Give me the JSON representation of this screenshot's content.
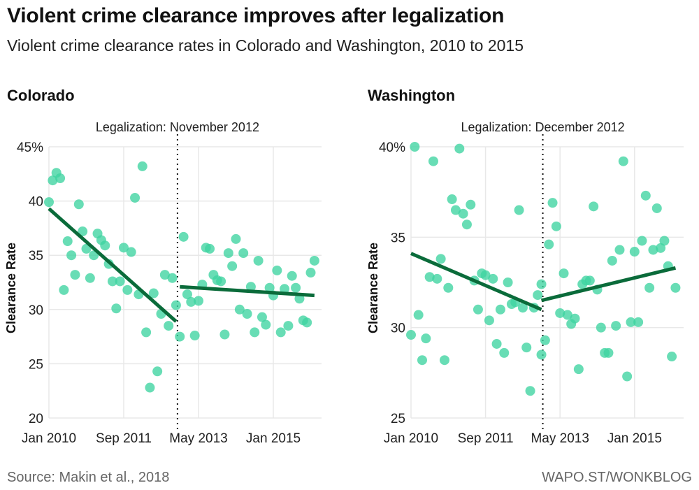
{
  "header": {
    "title": "Violent crime clearance improves after legalization",
    "subtitle": "Violent crime clearance rates in Colorado and Washington, 2010 to 2015"
  },
  "footer": {
    "source": "Source: Makin et al., 2018",
    "credit": "WAPO.ST/WONKBLOG"
  },
  "colors": {
    "points": "#3dd3a0",
    "trend": "#0a6b3a",
    "grid": "#e8e8e8",
    "legalization_line": "#111111"
  },
  "chart_data": [
    {
      "type": "scatter",
      "title": "Colorado",
      "xlabel": "",
      "ylabel": "Clearance Rate",
      "x_unit": "months since Jan 2010",
      "x_ticks": [
        {
          "value": 0,
          "label": "Jan 2010"
        },
        {
          "value": 20,
          "label": "Sep 2011"
        },
        {
          "value": 40,
          "label": "May 2013"
        },
        {
          "value": 60,
          "label": "Jan 2015"
        }
      ],
      "xlim": [
        0,
        72
      ],
      "y_ticks": [
        {
          "value": 45,
          "label": "45%"
        },
        {
          "value": 40,
          "label": "40"
        },
        {
          "value": 35,
          "label": "35"
        },
        {
          "value": 30,
          "label": "30"
        },
        {
          "value": 25,
          "label": "25"
        },
        {
          "value": 20,
          "label": "20"
        }
      ],
      "ylim": [
        20,
        45
      ],
      "grid": true,
      "legalization": {
        "month": 34,
        "label": "Legalization: November 2012"
      },
      "points": [
        [
          0,
          39.9
        ],
        [
          1,
          41.9
        ],
        [
          2,
          42.6
        ],
        [
          3,
          42.1
        ],
        [
          4,
          31.8
        ],
        [
          5,
          36.3
        ],
        [
          6,
          35.0
        ],
        [
          7,
          33.2
        ],
        [
          8,
          39.7
        ],
        [
          9,
          37.2
        ],
        [
          10,
          35.6
        ],
        [
          11,
          32.9
        ],
        [
          12,
          35.0
        ],
        [
          13,
          37.0
        ],
        [
          14,
          36.4
        ],
        [
          15,
          35.9
        ],
        [
          16,
          34.2
        ],
        [
          17,
          32.6
        ],
        [
          18,
          30.1
        ],
        [
          19,
          32.6
        ],
        [
          20,
          35.7
        ],
        [
          21,
          31.8
        ],
        [
          22,
          35.3
        ],
        [
          23,
          40.3
        ],
        [
          24,
          31.4
        ],
        [
          25,
          43.2
        ],
        [
          26,
          27.9
        ],
        [
          27,
          22.8
        ],
        [
          28,
          31.5
        ],
        [
          29,
          24.3
        ],
        [
          30,
          29.6
        ],
        [
          31,
          33.2
        ],
        [
          32,
          28.5
        ],
        [
          33,
          32.9
        ],
        [
          34,
          30.4
        ],
        [
          35,
          27.5
        ],
        [
          36,
          36.7
        ],
        [
          37,
          31.4
        ],
        [
          38,
          30.7
        ],
        [
          39,
          27.6
        ],
        [
          40,
          30.8
        ],
        [
          41,
          32.3
        ],
        [
          42,
          35.7
        ],
        [
          43,
          35.6
        ],
        [
          44,
          33.2
        ],
        [
          45,
          32.7
        ],
        [
          46,
          32.6
        ],
        [
          47,
          27.7
        ],
        [
          48,
          35.2
        ],
        [
          49,
          34.0
        ],
        [
          50,
          36.5
        ],
        [
          51,
          30.0
        ],
        [
          52,
          35.2
        ],
        [
          53,
          29.6
        ],
        [
          54,
          32.1
        ],
        [
          55,
          27.9
        ],
        [
          56,
          34.5
        ],
        [
          57,
          29.3
        ],
        [
          58,
          28.6
        ],
        [
          59,
          32.0
        ],
        [
          60,
          31.3
        ],
        [
          61,
          33.6
        ],
        [
          62,
          27.9
        ],
        [
          63,
          31.9
        ],
        [
          64,
          28.5
        ],
        [
          65,
          33.1
        ],
        [
          66,
          32.0
        ],
        [
          67,
          31.0
        ],
        [
          68,
          29.0
        ],
        [
          69,
          28.8
        ],
        [
          70,
          33.4
        ],
        [
          71,
          34.5
        ]
      ],
      "trend_lines": [
        {
          "segment": "pre",
          "from": [
            0,
            39.3
          ],
          "to": [
            34,
            28.9
          ]
        },
        {
          "segment": "post",
          "from": [
            35,
            32.1
          ],
          "to": [
            71,
            31.3
          ]
        }
      ]
    },
    {
      "type": "scatter",
      "title": "Washington",
      "xlabel": "",
      "ylabel": "Clearance Rate",
      "x_unit": "months since Jan 2010",
      "x_ticks": [
        {
          "value": 0,
          "label": "Jan 2010"
        },
        {
          "value": 20,
          "label": "Sep 2011"
        },
        {
          "value": 40,
          "label": "May 2013"
        },
        {
          "value": 60,
          "label": "Jan 2015"
        }
      ],
      "xlim": [
        0,
        72
      ],
      "y_ticks": [
        {
          "value": 40,
          "label": "40%"
        },
        {
          "value": 35,
          "label": "35"
        },
        {
          "value": 30,
          "label": "30"
        },
        {
          "value": 25,
          "label": "25"
        }
      ],
      "ylim": [
        25,
        40
      ],
      "grid": true,
      "legalization": {
        "month": 35,
        "label": "Legalization: December 2012"
      },
      "points": [
        [
          0,
          29.6
        ],
        [
          1,
          40.0
        ],
        [
          2,
          30.7
        ],
        [
          3,
          28.2
        ],
        [
          4,
          29.4
        ],
        [
          5,
          32.8
        ],
        [
          6,
          39.2
        ],
        [
          7,
          32.7
        ],
        [
          8,
          33.8
        ],
        [
          9,
          28.2
        ],
        [
          10,
          32.2
        ],
        [
          11,
          37.1
        ],
        [
          12,
          36.5
        ],
        [
          13,
          39.9
        ],
        [
          14,
          36.3
        ],
        [
          15,
          35.7
        ],
        [
          16,
          36.8
        ],
        [
          17,
          32.6
        ],
        [
          18,
          31.0
        ],
        [
          19,
          33.0
        ],
        [
          20,
          32.9
        ],
        [
          21,
          30.4
        ],
        [
          22,
          32.7
        ],
        [
          23,
          29.1
        ],
        [
          24,
          31.0
        ],
        [
          25,
          28.6
        ],
        [
          26,
          32.5
        ],
        [
          27,
          31.3
        ],
        [
          28,
          31.4
        ],
        [
          29,
          36.5
        ],
        [
          30,
          31.1
        ],
        [
          31,
          28.9
        ],
        [
          32,
          26.5
        ],
        [
          33,
          31.1
        ],
        [
          34,
          31.8
        ],
        [
          35,
          32.4
        ],
        [
          35,
          28.5
        ],
        [
          36,
          29.3
        ],
        [
          37,
          34.6
        ],
        [
          38,
          36.9
        ],
        [
          39,
          35.6
        ],
        [
          40,
          30.8
        ],
        [
          41,
          33.0
        ],
        [
          42,
          30.7
        ],
        [
          43,
          30.2
        ],
        [
          44,
          30.5
        ],
        [
          45,
          27.7
        ],
        [
          46,
          32.4
        ],
        [
          47,
          32.6
        ],
        [
          48,
          32.6
        ],
        [
          49,
          36.7
        ],
        [
          50,
          32.1
        ],
        [
          51,
          30.0
        ],
        [
          52,
          28.6
        ],
        [
          53,
          28.6
        ],
        [
          54,
          33.7
        ],
        [
          55,
          30.1
        ],
        [
          56,
          34.3
        ],
        [
          57,
          39.2
        ],
        [
          58,
          27.3
        ],
        [
          59,
          30.3
        ],
        [
          60,
          34.2
        ],
        [
          61,
          30.3
        ],
        [
          62,
          34.8
        ],
        [
          63,
          37.3
        ],
        [
          64,
          32.2
        ],
        [
          65,
          34.3
        ],
        [
          66,
          36.6
        ],
        [
          67,
          34.4
        ],
        [
          68,
          34.8
        ],
        [
          69,
          33.4
        ],
        [
          70,
          28.4
        ],
        [
          71,
          32.2
        ]
      ],
      "trend_lines": [
        {
          "segment": "pre",
          "from": [
            0,
            34.1
          ],
          "to": [
            35,
            31.0
          ]
        },
        {
          "segment": "post",
          "from": [
            35,
            31.5
          ],
          "to": [
            71,
            33.3
          ]
        }
      ]
    }
  ]
}
